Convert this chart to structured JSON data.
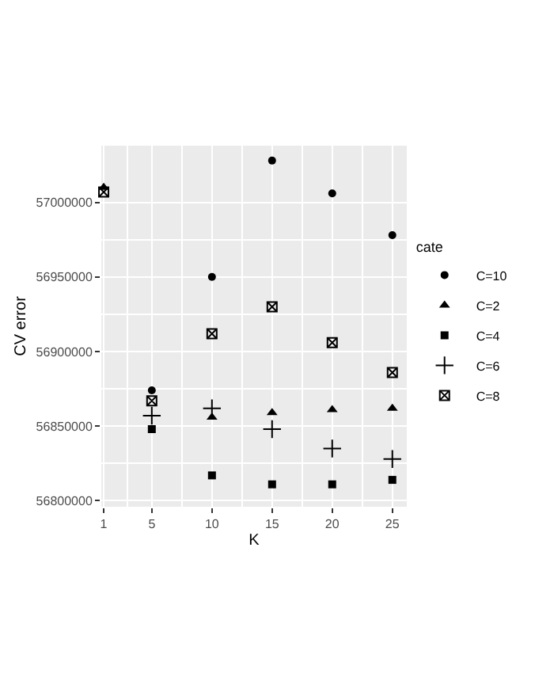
{
  "chart_data": {
    "type": "scatter",
    "xlabel": "K",
    "ylabel": "CV error",
    "legend_title": "cate",
    "legend": "right",
    "grid": true,
    "x": [
      1,
      5,
      10,
      15,
      20,
      25
    ],
    "xlim": [
      0.8,
      26.2
    ],
    "xticks": [
      1,
      5,
      10,
      15,
      20,
      25
    ],
    "ylim": [
      56796000,
      57038000
    ],
    "yticks": [
      56800000,
      56850000,
      56900000,
      56950000,
      57000000
    ],
    "series": [
      {
        "name": "C=10",
        "color": "#000000",
        "marker": "circle",
        "values": [
          null,
          56874000,
          56950000,
          57028000,
          57006000,
          56978000
        ]
      },
      {
        "name": "C=2",
        "color": "#000000",
        "marker": "triangle",
        "values": [
          57010000,
          null,
          56856000,
          56859000,
          56861000,
          56862000
        ]
      },
      {
        "name": "C=4",
        "color": "#000000",
        "marker": "square",
        "values": [
          null,
          56848000,
          56817000,
          56811000,
          56811000,
          56814000
        ]
      },
      {
        "name": "C=6",
        "color": "#000000",
        "marker": "cross",
        "values": [
          null,
          56857000,
          56862000,
          56848000,
          56835000,
          56828000
        ]
      },
      {
        "name": "C=8",
        "color": "#000000",
        "values": [
          57007000,
          56867000,
          56912000,
          56930000,
          56906000,
          56886000
        ]
      }
    ]
  }
}
